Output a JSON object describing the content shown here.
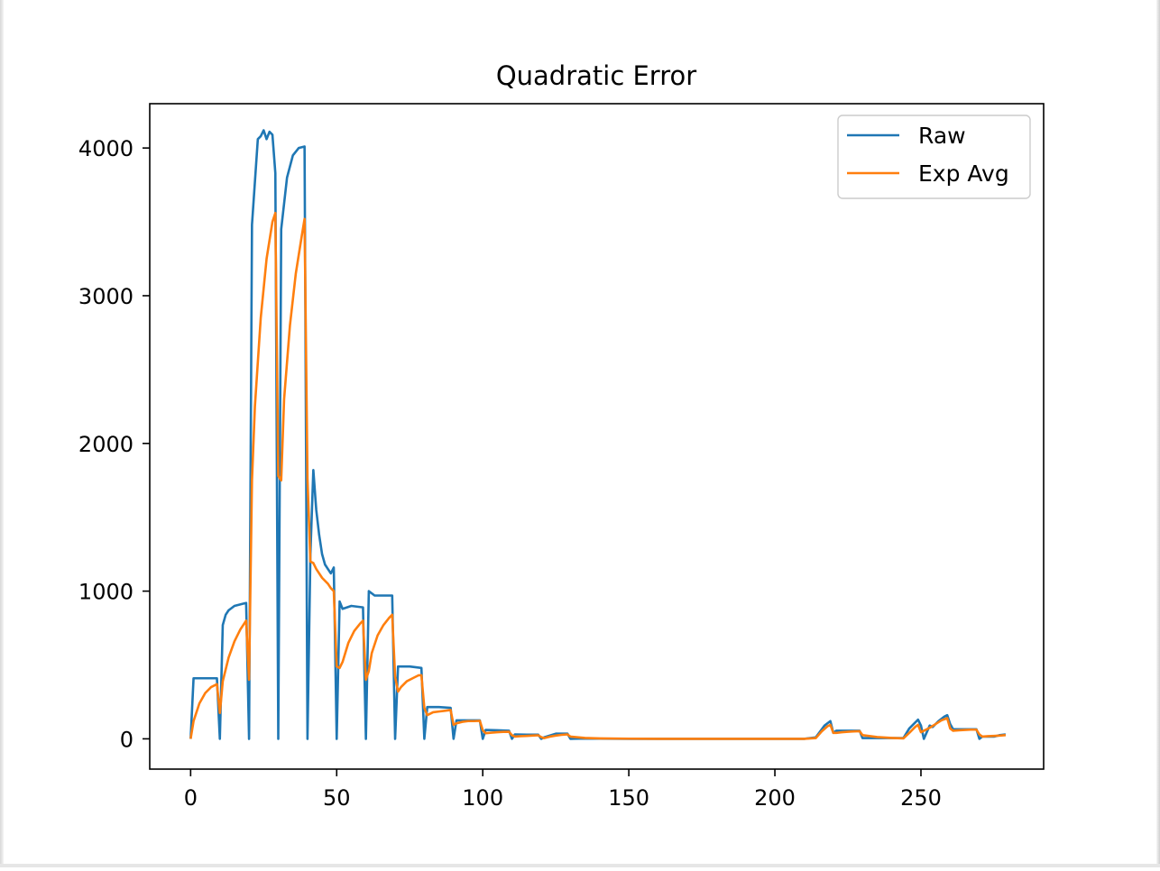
{
  "chart_data": {
    "type": "line",
    "title": "Quadratic Error",
    "xlabel": "",
    "ylabel": "",
    "xlim": [
      -14,
      292
    ],
    "ylim": [
      -205,
      4300
    ],
    "xticks": [
      0,
      50,
      100,
      150,
      200,
      250
    ],
    "yticks": [
      0,
      1000,
      2000,
      3000,
      4000
    ],
    "grid": false,
    "legend_position": "top-right",
    "series": [
      {
        "name": "Raw",
        "color": "#1f77b4",
        "x": [
          0,
          1,
          9,
          10,
          11,
          12,
          13,
          15,
          18,
          19,
          20,
          21,
          23,
          24,
          25,
          26,
          27,
          28,
          29,
          30,
          31,
          33,
          35,
          37,
          39,
          40,
          41,
          42,
          43,
          44,
          45,
          46,
          47,
          48,
          49,
          50,
          51,
          52,
          55,
          59,
          60,
          61,
          63,
          65,
          69,
          70,
          71,
          75,
          79,
          80,
          81,
          85,
          89,
          90,
          91,
          95,
          99,
          100,
          101,
          105,
          109,
          110,
          111,
          115,
          119,
          120,
          121,
          125,
          129,
          130,
          135,
          140,
          150,
          160,
          170,
          180,
          190,
          200,
          210,
          214,
          217,
          219,
          220,
          221,
          225,
          229,
          230,
          235,
          240,
          244,
          246,
          248,
          249,
          250,
          251,
          253,
          254,
          256,
          258,
          259,
          260,
          261,
          265,
          269,
          270,
          271,
          273,
          275,
          277,
          279
        ],
        "y": [
          0,
          410,
          410,
          0,
          770,
          840,
          870,
          900,
          915,
          920,
          0,
          3480,
          4060,
          4080,
          4120,
          4060,
          4110,
          4090,
          3830,
          0,
          3450,
          3800,
          3950,
          4000,
          4010,
          0,
          1250,
          1820,
          1550,
          1380,
          1250,
          1180,
          1150,
          1120,
          1160,
          0,
          930,
          880,
          900,
          890,
          0,
          1000,
          970,
          970,
          970,
          0,
          490,
          490,
          480,
          0,
          215,
          215,
          210,
          0,
          125,
          125,
          125,
          0,
          60,
          58,
          55,
          0,
          30,
          28,
          28,
          0,
          10,
          35,
          35,
          0,
          2,
          1,
          0,
          0,
          0,
          0,
          0,
          0,
          0,
          10,
          90,
          120,
          40,
          55,
          55,
          55,
          5,
          5,
          5,
          5,
          70,
          110,
          130,
          90,
          0,
          90,
          80,
          120,
          150,
          160,
          100,
          65,
          65,
          65,
          0,
          15,
          15,
          15,
          25,
          30
        ]
      },
      {
        "name": "Exp Avg",
        "color": "#ff7f0e",
        "x": [
          0,
          1,
          3,
          5,
          7,
          9,
          10,
          11,
          13,
          15,
          17,
          19,
          20,
          21,
          22,
          24,
          26,
          28,
          29,
          30,
          31,
          32,
          34,
          36,
          38,
          39,
          40,
          41,
          42,
          43,
          45,
          47,
          48,
          49,
          50,
          51,
          52,
          54,
          56,
          58,
          59,
          60,
          61,
          62,
          64,
          66,
          68,
          69,
          70,
          71,
          72,
          74,
          76,
          78,
          79,
          80,
          81,
          83,
          85,
          87,
          89,
          90,
          91,
          93,
          95,
          97,
          99,
          100,
          101,
          103,
          105,
          107,
          109,
          110,
          111,
          113,
          115,
          117,
          119,
          120,
          121,
          123,
          125,
          127,
          129,
          130,
          135,
          140,
          150,
          160,
          170,
          180,
          190,
          200,
          210,
          214,
          216,
          218,
          219,
          220,
          221,
          223,
          225,
          227,
          229,
          230,
          235,
          240,
          244,
          246,
          248,
          249,
          250,
          251,
          253,
          255,
          257,
          259,
          260,
          261,
          263,
          265,
          267,
          269,
          270,
          271,
          273,
          275,
          277,
          279
        ],
        "y": [
          0,
          120,
          240,
          310,
          350,
          370,
          175,
          390,
          550,
          660,
          740,
          800,
          400,
          1750,
          2250,
          2850,
          3250,
          3500,
          3560,
          1780,
          1750,
          2300,
          2800,
          3150,
          3400,
          3520,
          1760,
          1200,
          1190,
          1150,
          1090,
          1050,
          1020,
          1000,
          490,
          480,
          520,
          650,
          730,
          780,
          800,
          400,
          460,
          580,
          700,
          770,
          820,
          840,
          420,
          320,
          350,
          390,
          410,
          430,
          430,
          210,
          160,
          180,
          185,
          190,
          195,
          95,
          105,
          115,
          120,
          120,
          122,
          58,
          38,
          42,
          45,
          47,
          48,
          24,
          15,
          18,
          20,
          22,
          24,
          12,
          5,
          15,
          22,
          27,
          30,
          15,
          6,
          3,
          1,
          0,
          0,
          0,
          0,
          0,
          0,
          5,
          50,
          85,
          95,
          40,
          40,
          45,
          48,
          50,
          52,
          25,
          12,
          6,
          3,
          40,
          80,
          95,
          45,
          55,
          75,
          100,
          125,
          140,
          70,
          55,
          58,
          60,
          62,
          62,
          30,
          15,
          18,
          20,
          22,
          25
        ]
      }
    ]
  }
}
